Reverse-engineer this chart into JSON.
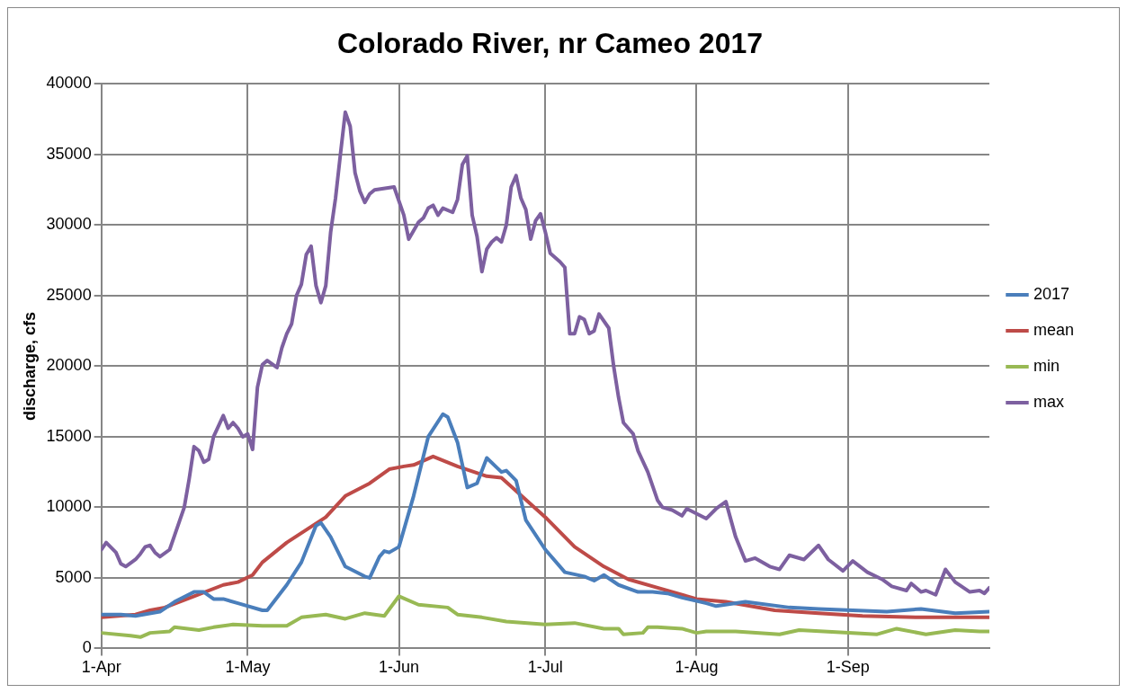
{
  "chart_data": {
    "type": "line",
    "title": "Colorado River, nr Cameo 2017",
    "ylabel": "discharge, cfs",
    "xlim": [
      "--04-01",
      "--09-30"
    ],
    "xticks": [
      {
        "value": "--04-01",
        "label": "1-Apr"
      },
      {
        "value": "--05-01",
        "label": "1-May"
      },
      {
        "value": "--06-01",
        "label": "1-Jun"
      },
      {
        "value": "--07-01",
        "label": "1-Jul"
      },
      {
        "value": "--08-01",
        "label": "1-Aug"
      },
      {
        "value": "--09-01",
        "label": "1-Sep"
      }
    ],
    "ylim": [
      0,
      40000
    ],
    "yticks": [
      0,
      5000,
      10000,
      15000,
      20000,
      25000,
      30000,
      35000,
      40000
    ],
    "grid": true,
    "legend": "right",
    "marker": "none",
    "line_style": "solid",
    "series": [
      {
        "name": "2017",
        "color": "#4a7ebb",
        "x": [
          "--04-01",
          "--04-05",
          "--04-08",
          "--04-13",
          "--04-16",
          "--04-20",
          "--04-22",
          "--04-24",
          "--04-26",
          "--04-29",
          "--05-04",
          "--05-05",
          "--05-09",
          "--05-12",
          "--05-15",
          "--05-16",
          "--05-18",
          "--05-21",
          "--05-25",
          "--05-26",
          "--05-28",
          "--05-29",
          "--05-30",
          "--06-01",
          "--06-04",
          "--06-07",
          "--06-10",
          "--06-11",
          "--06-13",
          "--06-15",
          "--06-17",
          "--06-19",
          "--06-22",
          "--06-23",
          "--06-25",
          "--06-27",
          "--07-01",
          "--07-05",
          "--07-09",
          "--07-11",
          "--07-13",
          "--07-16",
          "--07-20",
          "--07-23",
          "--07-26",
          "--07-29",
          "--08-03",
          "--08-05",
          "--08-11",
          "--08-20",
          "--08-26",
          "--09-09",
          "--09-16",
          "--09-23",
          "--09-30"
        ],
        "values": [
          2400,
          2400,
          2300,
          2600,
          3300,
          4000,
          4000,
          3500,
          3500,
          3200,
          2700,
          2700,
          4500,
          6100,
          8700,
          8900,
          7900,
          5800,
          5100,
          5000,
          6500,
          6900,
          6800,
          7200,
          10800,
          15000,
          16600,
          16400,
          14600,
          11400,
          11700,
          13500,
          12500,
          12600,
          11900,
          9100,
          7000,
          5400,
          5100,
          4800,
          5200,
          4500,
          4000,
          4000,
          3900,
          3600,
          3200,
          3000,
          3300,
          2900,
          2800,
          2600,
          2800,
          2500,
          2600
        ]
      },
      {
        "name": "mean",
        "color": "#be4b48",
        "x": [
          "--04-01",
          "--04-08",
          "--04-11",
          "--04-14",
          "--04-20",
          "--04-26",
          "--04-29",
          "--05-02",
          "--05-04",
          "--05-09",
          "--05-17",
          "--05-21",
          "--05-26",
          "--05-30",
          "--06-02",
          "--06-04",
          "--06-08",
          "--06-13",
          "--06-19",
          "--06-22",
          "--07-01",
          "--07-07",
          "--07-13",
          "--07-18",
          "--07-24",
          "--08-01",
          "--08-07",
          "--08-17",
          "--08-26",
          "--09-04",
          "--09-16",
          "--09-30"
        ],
        "values": [
          2200,
          2400,
          2700,
          2900,
          3700,
          4500,
          4700,
          5200,
          6100,
          7500,
          9300,
          10800,
          11700,
          12700,
          12900,
          13000,
          13600,
          12900,
          12200,
          12100,
          9300,
          7200,
          5800,
          4900,
          4300,
          3500,
          3300,
          2700,
          2500,
          2300,
          2200,
          2200
        ]
      },
      {
        "name": "min",
        "color": "#98b954",
        "x": [
          "--04-01",
          "--04-07",
          "--04-09",
          "--04-11",
          "--04-15",
          "--04-16",
          "--04-21",
          "--04-24",
          "--04-28",
          "--05-04",
          "--05-09",
          "--05-12",
          "--05-17",
          "--05-21",
          "--05-25",
          "--05-29",
          "--06-01",
          "--06-05",
          "--06-11",
          "--06-13",
          "--06-18",
          "--06-23",
          "--07-01",
          "--07-07",
          "--07-13",
          "--07-16",
          "--07-17",
          "--07-21",
          "--07-22",
          "--07-24",
          "--07-29",
          "--08-01",
          "--08-03",
          "--08-09",
          "--08-18",
          "--08-22",
          "--09-02",
          "--09-07",
          "--09-11",
          "--09-17",
          "--09-23",
          "--09-28",
          "--09-30"
        ],
        "values": [
          1100,
          900,
          800,
          1100,
          1200,
          1500,
          1300,
          1500,
          1700,
          1600,
          1600,
          2200,
          2400,
          2100,
          2500,
          2300,
          3700,
          3100,
          2900,
          2400,
          2200,
          1900,
          1700,
          1800,
          1400,
          1400,
          1000,
          1100,
          1500,
          1500,
          1400,
          1100,
          1200,
          1200,
          1000,
          1300,
          1100,
          1000,
          1400,
          1000,
          1300,
          1200,
          1200
        ]
      },
      {
        "name": "max",
        "color": "#7d60a0",
        "x": [
          "--04-01",
          "--04-02",
          "--04-04",
          "--04-05",
          "--04-06",
          "--04-08",
          "--04-09",
          "--04-10",
          "--04-11",
          "--04-12",
          "--04-13",
          "--04-15",
          "--04-16",
          "--04-17",
          "--04-18",
          "--04-19",
          "--04-20",
          "--04-21",
          "--04-22",
          "--04-23",
          "--04-24",
          "--04-26",
          "--04-27",
          "--04-28",
          "--04-29",
          "--04-30",
          "--05-01",
          "--05-02",
          "--05-03",
          "--05-04",
          "--05-05",
          "--05-07",
          "--05-08",
          "--05-09",
          "--05-10",
          "--05-11",
          "--05-12",
          "--05-13",
          "--05-14",
          "--05-15",
          "--05-16",
          "--05-17",
          "--05-18",
          "--05-19",
          "--05-20",
          "--05-21",
          "--05-22",
          "--05-23",
          "--05-24",
          "--05-25",
          "--05-26",
          "--05-27",
          "--05-31",
          "--06-02",
          "--06-03",
          "--06-05",
          "--06-06",
          "--06-07",
          "--06-08",
          "--06-09",
          "--06-10",
          "--06-12",
          "--06-13",
          "--06-14",
          "--06-15",
          "--06-16",
          "--06-17",
          "--06-18",
          "--06-19",
          "--06-20",
          "--06-21",
          "--06-22",
          "--06-23",
          "--06-24",
          "--06-25",
          "--06-26",
          "--06-27",
          "--06-28",
          "--06-29",
          "--06-30",
          "--07-01",
          "--07-02",
          "--07-04",
          "--07-05",
          "--07-06",
          "--07-07",
          "--07-08",
          "--07-09",
          "--07-10",
          "--07-11",
          "--07-12",
          "--07-14",
          "--07-15",
          "--07-16",
          "--07-17",
          "--07-19",
          "--07-20",
          "--07-22",
          "--07-24",
          "--07-25",
          "--07-27",
          "--07-29",
          "--07-30",
          "--08-03",
          "--08-05",
          "--08-07",
          "--08-09",
          "--08-11",
          "--08-13",
          "--08-16",
          "--08-18",
          "--08-20",
          "--08-23",
          "--08-26",
          "--08-28",
          "--08-31",
          "--09-02",
          "--09-05",
          "--09-08",
          "--09-10",
          "--09-13",
          "--09-14",
          "--09-16",
          "--09-17",
          "--09-19",
          "--09-21",
          "--09-23",
          "--09-26",
          "--09-28",
          "--09-29",
          "--09-30"
        ],
        "values": [
          7000,
          7500,
          6800,
          6000,
          5800,
          6300,
          6700,
          7200,
          7300,
          6800,
          6500,
          7000,
          8000,
          9000,
          10000,
          12000,
          14300,
          14000,
          13200,
          13400,
          15000,
          16500,
          15600,
          16000,
          15600,
          15000,
          15200,
          14100,
          18500,
          20100,
          20400,
          19900,
          21300,
          22300,
          23000,
          25000,
          25800,
          27900,
          28500,
          25700,
          24500,
          25700,
          29500,
          31900,
          35000,
          38000,
          37000,
          33700,
          32400,
          31600,
          32200,
          32500,
          32700,
          30700,
          29000,
          30200,
          30500,
          31200,
          31400,
          30700,
          31200,
          30900,
          31800,
          34300,
          34900,
          30700,
          29200,
          26700,
          28300,
          28800,
          29100,
          28800,
          30000,
          32700,
          33500,
          31900,
          31100,
          29000,
          30300,
          30800,
          29500,
          28000,
          27400,
          27000,
          22300,
          22300,
          23500,
          23300,
          22300,
          22500,
          23700,
          22700,
          20000,
          17800,
          16000,
          15200,
          14000,
          12500,
          10500,
          10000,
          9800,
          9400,
          9900,
          9200,
          9900,
          10400,
          7900,
          6200,
          6400,
          5800,
          5600,
          6600,
          6300,
          7300,
          6300,
          5500,
          6200,
          5400,
          4900,
          4400,
          4100,
          4600,
          4000,
          4100,
          3800,
          5600,
          4700,
          4000,
          4100,
          3900,
          4300
        ]
      }
    ]
  }
}
